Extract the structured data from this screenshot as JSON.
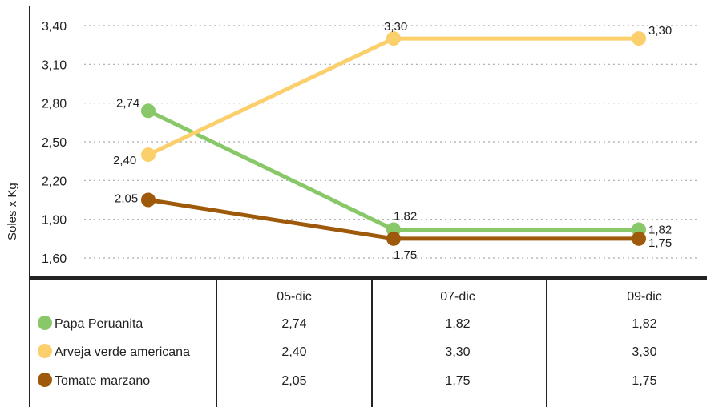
{
  "chart_data": {
    "type": "line",
    "ylabel": "Soles x Kg",
    "ylim": [
      1.6,
      3.4
    ],
    "yticks": [
      "3,40",
      "3,10",
      "2,80",
      "2,50",
      "2,20",
      "1,90",
      "1,60"
    ],
    "ytick_values": [
      3.4,
      3.1,
      2.8,
      2.5,
      2.2,
      1.9,
      1.6
    ],
    "grid": "horizontal-dotted",
    "legend": "table-below",
    "categories": [
      "05-dic",
      "07-dic",
      "09-dic"
    ],
    "series": [
      {
        "name": "Papa Peruanita",
        "color": "#88c868",
        "values": [
          2.74,
          1.82,
          1.82
        ],
        "labels": [
          "2,74",
          "1,82",
          "1,82"
        ]
      },
      {
        "name": "Arveja verde americana",
        "color": "#fbcf6b",
        "values": [
          2.4,
          3.3,
          3.3
        ],
        "labels": [
          "2,40",
          "3,30",
          "3,30"
        ]
      },
      {
        "name": "Tomate marzano",
        "color": "#9e5a0a",
        "values": [
          2.05,
          1.75,
          1.75
        ],
        "labels": [
          "2,05",
          "1,75",
          "1,75"
        ]
      }
    ]
  }
}
